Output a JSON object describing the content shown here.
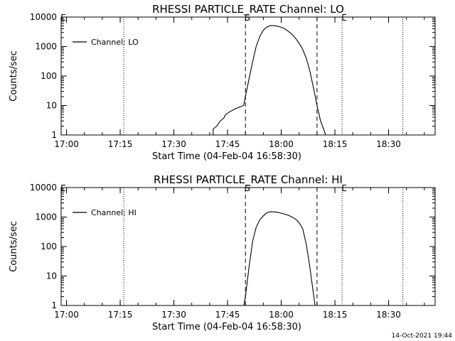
{
  "timestamp": "14-Oct-2021 19:44",
  "chart_data": [
    {
      "type": "line",
      "title": "RHESSI PARTICLE_RATE Channel: LO",
      "xlabel": "Start Time (04-Feb-04 16:58:30)",
      "ylabel": "Counts/sec",
      "yscale": "log",
      "ylim": [
        1,
        10000
      ],
      "xlim": [
        "16:58:30",
        "18:43:00"
      ],
      "xticks": [
        "17:00",
        "17:15",
        "17:30",
        "17:45",
        "18:00",
        "18:15",
        "18:30"
      ],
      "yticks": [
        "1",
        "10",
        "100",
        "1000",
        "10000"
      ],
      "legend": {
        "label": "Channel: LO",
        "position": "top-left"
      },
      "markers": [
        {
          "label": "E",
          "time": "16:58:30",
          "style": "dotted"
        },
        {
          "label": "",
          "time": "17:16:00",
          "style": "dotted"
        },
        {
          "label": "S",
          "time": "17:50:00",
          "style": "dashed"
        },
        {
          "label": "",
          "time": "18:10:00",
          "style": "dashed"
        },
        {
          "label": "E",
          "time": "18:17:00",
          "style": "dotted"
        },
        {
          "label": "",
          "time": "18:34:00",
          "style": "dotted"
        }
      ],
      "series": [
        {
          "name": "Channel: LO",
          "points": [
            [
              "17:41:00",
              0.9
            ],
            [
              "17:41:00",
              1.6
            ],
            [
              "17:42:00",
              2
            ],
            [
              "17:42:30",
              2.5
            ],
            [
              "17:43:00",
              3
            ],
            [
              "17:44:00",
              3.8
            ],
            [
              "17:44:30",
              5
            ],
            [
              "17:45:30",
              6
            ],
            [
              "17:46:30",
              7
            ],
            [
              "17:47:30",
              8
            ],
            [
              "17:48:30",
              9
            ],
            [
              "17:49:30",
              10
            ],
            [
              "17:50:00",
              20
            ],
            [
              "17:51:00",
              80
            ],
            [
              "17:52:00",
              300
            ],
            [
              "17:53:00",
              1000
            ],
            [
              "17:54:00",
              2200
            ],
            [
              "17:55:00",
              3600
            ],
            [
              "17:56:00",
              4600
            ],
            [
              "17:57:00",
              5100
            ],
            [
              "17:58:00",
              5100
            ],
            [
              "17:59:00",
              4900
            ],
            [
              "18:00:00",
              4500
            ],
            [
              "18:01:00",
              4000
            ],
            [
              "18:02:00",
              3300
            ],
            [
              "18:03:00",
              2600
            ],
            [
              "18:04:00",
              1900
            ],
            [
              "18:05:00",
              1300
            ],
            [
              "18:06:00",
              800
            ],
            [
              "18:07:00",
              400
            ],
            [
              "18:08:00",
              150
            ],
            [
              "18:09:00",
              40
            ],
            [
              "18:10:00",
              10
            ],
            [
              "18:11:00",
              3
            ],
            [
              "18:12:00",
              1.4
            ],
            [
              "18:12:30",
              0.9
            ]
          ]
        }
      ]
    },
    {
      "type": "line",
      "title": "RHESSI PARTICLE_RATE Channel: HI",
      "xlabel": "Start Time (04-Feb-04 16:58:30)",
      "ylabel": "Counts/sec",
      "yscale": "log",
      "ylim": [
        1,
        10000
      ],
      "xlim": [
        "16:58:30",
        "18:43:00"
      ],
      "xticks": [
        "17:00",
        "17:15",
        "17:30",
        "17:45",
        "18:00",
        "18:15",
        "18:30"
      ],
      "yticks": [
        "1",
        "10",
        "100",
        "1000",
        "10000"
      ],
      "legend": {
        "label": "Channel: HI",
        "position": "top-left"
      },
      "markers": [
        {
          "label": "E",
          "time": "16:58:30",
          "style": "dotted"
        },
        {
          "label": "",
          "time": "17:16:00",
          "style": "dotted"
        },
        {
          "label": "S",
          "time": "17:50:00",
          "style": "dashed"
        },
        {
          "label": "",
          "time": "18:10:00",
          "style": "dashed"
        },
        {
          "label": "E",
          "time": "18:17:00",
          "style": "dotted"
        },
        {
          "label": "",
          "time": "18:34:00",
          "style": "dotted"
        }
      ],
      "series": [
        {
          "name": "Channel: HI",
          "points": [
            [
              "17:49:30",
              0.9
            ],
            [
              "17:50:00",
              2
            ],
            [
              "17:51:00",
              20
            ],
            [
              "17:52:00",
              150
            ],
            [
              "17:53:00",
              450
            ],
            [
              "17:54:00",
              800
            ],
            [
              "17:55:00",
              1100
            ],
            [
              "17:56:00",
              1400
            ],
            [
              "17:57:00",
              1500
            ],
            [
              "17:58:00",
              1500
            ],
            [
              "17:59:00",
              1450
            ],
            [
              "18:00:00",
              1350
            ],
            [
              "18:01:00",
              1250
            ],
            [
              "18:02:00",
              1150
            ],
            [
              "18:03:00",
              1000
            ],
            [
              "18:04:00",
              850
            ],
            [
              "18:05:00",
              650
            ],
            [
              "18:06:00",
              400
            ],
            [
              "18:07:00",
              120
            ],
            [
              "18:08:00",
              20
            ],
            [
              "18:09:00",
              2.5
            ],
            [
              "18:09:30",
              0.9
            ]
          ]
        }
      ]
    }
  ]
}
